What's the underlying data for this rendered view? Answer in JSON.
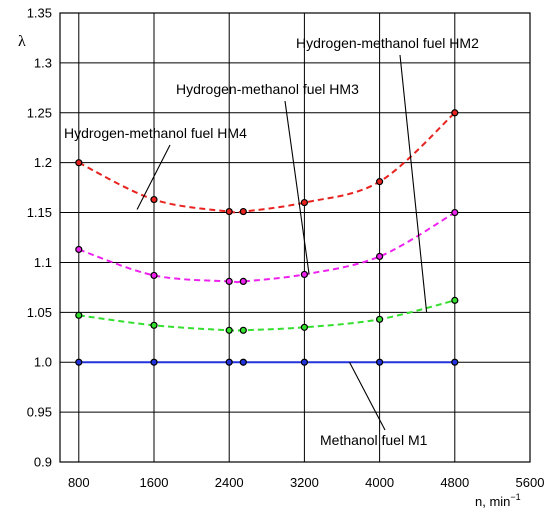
{
  "chart_data": {
    "type": "line",
    "ylabel": "λ",
    "xlabel": "n, min",
    "xlabel_sup": "−1",
    "xlim": [
      600,
      5600
    ],
    "ylim": [
      0.9,
      1.35
    ],
    "xticks": [
      800,
      1600,
      2400,
      3200,
      4000,
      4800,
      5600
    ],
    "xtick_labels": [
      "800",
      "1600",
      "2400",
      "3200",
      "4000",
      "4800",
      "5600"
    ],
    "yticks": [
      0.9,
      0.95,
      1.0,
      1.05,
      1.1,
      1.15,
      1.2,
      1.25,
      1.3,
      1.35
    ],
    "ytick_labels": [
      "0.9",
      "0.95",
      "1.0",
      "1.05",
      "1.1",
      "1.15",
      "1.2",
      "1.25",
      "1.3",
      "1.35"
    ],
    "grid": true,
    "series": [
      {
        "name": "Hydrogen-methanol fuel HM4",
        "color": "#e8231f",
        "style": "dashed",
        "x": [
          800,
          1600,
          2400,
          2550,
          3200,
          4000,
          4800
        ],
        "y": [
          1.2,
          1.163,
          1.151,
          1.151,
          1.16,
          1.181,
          1.25
        ]
      },
      {
        "name": "Hydrogen-methanol fuel HM3",
        "color": "#ee22ee",
        "style": "dashed",
        "x": [
          800,
          1600,
          2400,
          2550,
          3200,
          4000,
          4800
        ],
        "y": [
          1.113,
          1.087,
          1.081,
          1.081,
          1.088,
          1.106,
          1.15
        ]
      },
      {
        "name": "Hydrogen-methanol fuel HM2",
        "color": "#33e02e",
        "style": "dashed",
        "x": [
          800,
          1600,
          2400,
          2550,
          3200,
          4000,
          4800
        ],
        "y": [
          1.047,
          1.037,
          1.032,
          1.032,
          1.035,
          1.043,
          1.062
        ]
      },
      {
        "name": "Methanol fuel M1",
        "color": "#2233dd",
        "style": "solid",
        "x": [
          800,
          1600,
          2400,
          2550,
          3200,
          4000,
          4800
        ],
        "y": [
          1.0,
          1.0,
          1.0,
          1.0,
          1.0,
          1.0,
          1.0
        ]
      }
    ],
    "annotations": [
      {
        "text": "Hydrogen-methanol fuel HM4",
        "series": 0,
        "point_x": 1420,
        "point_y": 1.153
      },
      {
        "text": "Hydrogen-methanol fuel HM3",
        "series": 1,
        "point_x": 3250,
        "point_y": 1.088
      },
      {
        "text": "Hydrogen-methanol fuel HM2",
        "series": 2,
        "point_x": 4500,
        "point_y": 1.05
      },
      {
        "text": "Methanol fuel M1",
        "series": 3,
        "point_x": 3680,
        "point_y": 1.0
      }
    ]
  }
}
